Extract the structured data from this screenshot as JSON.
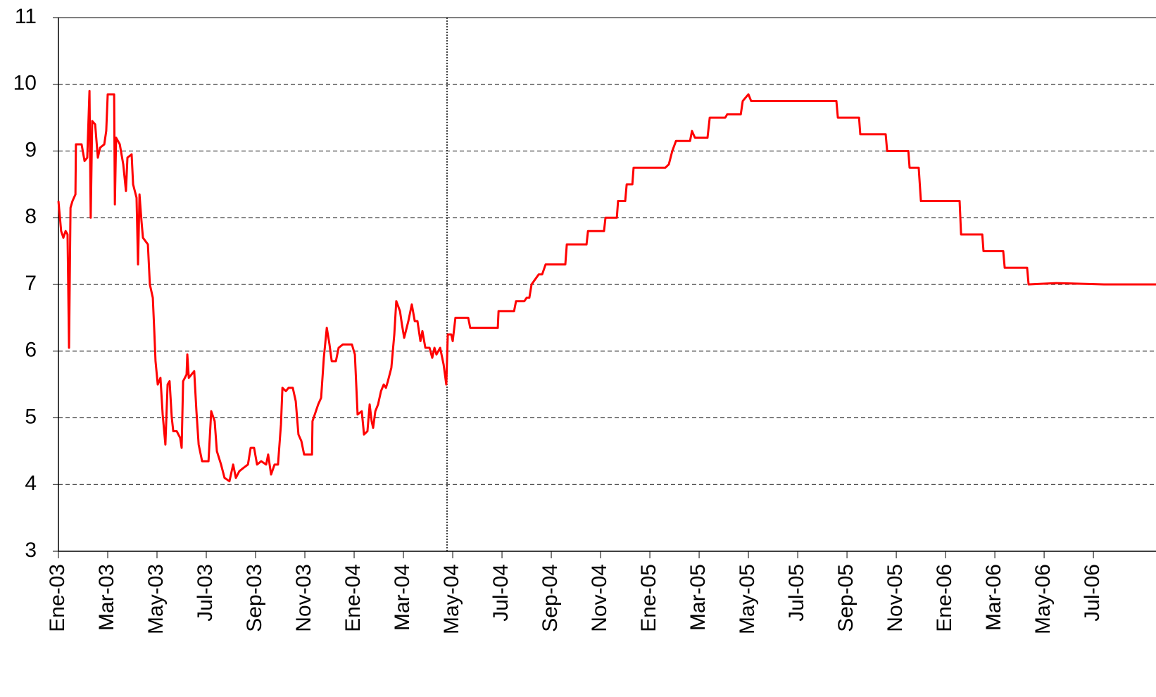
{
  "chart_data": {
    "type": "line",
    "x": [
      0,
      0.11,
      0.2,
      0.29,
      0.37,
      0.43,
      0.49,
      0.57,
      0.69,
      0.71,
      0.94,
      1.06,
      1.17,
      1.26,
      1.31,
      1.37,
      1.49,
      1.6,
      1.69,
      1.86,
      1.94,
      2,
      2.11,
      2.26,
      2.29,
      2.34,
      2.49,
      2.63,
      2.74,
      2.8,
      2.97,
      3.03,
      3.17,
      3.23,
      3.29,
      3.37,
      3.43,
      3.63,
      3.71,
      3.83,
      3.89,
      3.94,
      4.03,
      4.14,
      4.23,
      4.34,
      4.43,
      4.51,
      4.6,
      4.66,
      4.8,
      4.94,
      5,
      5.06,
      5.2,
      5.23,
      5.29,
      5.4,
      5.51,
      5.6,
      5.69,
      5.83,
      6.09,
      6.2,
      6.34,
      6.43,
      6.6,
      6.74,
      6.94,
      7.09,
      7.2,
      7.34,
      7.51,
      7.69,
      7.8,
      7.94,
      8.06,
      8.23,
      8.43,
      8.51,
      8.63,
      8.77,
      8.91,
      9.03,
      9.09,
      9.23,
      9.34,
      9.51,
      9.63,
      9.74,
      9.86,
      9.97,
      10.29,
      10.31,
      10.54,
      10.66,
      10.77,
      10.89,
      11,
      11.09,
      11.26,
      11.37,
      11.54,
      11.91,
      12.03,
      12.14,
      12.31,
      12.4,
      12.54,
      12.63,
      12.71,
      12.77,
      12.86,
      12.97,
      13.09,
      13.2,
      13.29,
      13.37,
      13.51,
      13.63,
      13.71,
      13.86,
      13.94,
      14.03,
      14.2,
      14.34,
      14.46,
      14.57,
      14.69,
      14.77,
      14.89,
      15.06,
      15.17,
      15.26,
      15.34,
      15.49,
      15.63,
      15.74,
      15.8,
      15.94,
      16,
      16.11,
      16.63,
      16.71,
      17.83,
      17.86,
      18.49,
      18.57,
      18.91,
      19,
      19.11,
      19.2,
      19.49,
      19.63,
      19.77,
      20.57,
      20.63,
      21.43,
      21.49,
      22.14,
      22.2,
      22.66,
      22.71,
      23,
      23.06,
      23.29,
      23.34,
      24.63,
      24.77,
      24.91,
      25.06,
      25.63,
      25.71,
      25.83,
      26.34,
      26.43,
      27.06,
      27.14,
      27.69,
      27.77,
      28,
      28.11,
      31.57,
      31.63,
      32.49,
      32.54,
      33.57,
      33.63,
      34.49,
      34.54,
      34.91,
      35,
      36.57,
      36.63,
      37.49,
      37.54,
      38.34,
      38.4,
      39.31,
      39.37,
      40.49,
      42.43,
      44.54
    ],
    "values": [
      8.25,
      7.8,
      7.7,
      7.8,
      7.75,
      6.05,
      8.15,
      8.25,
      8.35,
      9.1,
      9.1,
      8.85,
      8.9,
      9.9,
      8.0,
      9.45,
      9.4,
      8.9,
      9.05,
      9.1,
      9.3,
      9.85,
      9.85,
      9.85,
      8.2,
      9.2,
      9.1,
      8.8,
      8.4,
      8.9,
      8.95,
      8.5,
      8.3,
      7.3,
      8.35,
      7.95,
      7.7,
      7.6,
      7.0,
      6.8,
      6.3,
      5.85,
      5.5,
      5.6,
      5.05,
      4.6,
      5.5,
      5.55,
      5.0,
      4.8,
      4.8,
      4.7,
      4.55,
      5.55,
      5.65,
      5.95,
      5.6,
      5.65,
      5.7,
      5.1,
      4.6,
      4.35,
      4.35,
      5.1,
      4.95,
      4.5,
      4.3,
      4.1,
      4.05,
      4.3,
      4.1,
      4.2,
      4.25,
      4.3,
      4.55,
      4.55,
      4.3,
      4.35,
      4.3,
      4.45,
      4.15,
      4.3,
      4.3,
      4.9,
      5.45,
      5.4,
      5.45,
      5.45,
      5.25,
      4.75,
      4.65,
      4.45,
      4.45,
      4.95,
      5.2,
      5.3,
      5.9,
      6.35,
      6.1,
      5.85,
      5.85,
      6.05,
      6.1,
      6.1,
      5.95,
      5.05,
      5.1,
      4.75,
      4.8,
      5.2,
      4.95,
      4.85,
      5.1,
      5.2,
      5.4,
      5.5,
      5.45,
      5.55,
      5.75,
      6.25,
      6.75,
      6.6,
      6.4,
      6.2,
      6.45,
      6.7,
      6.45,
      6.45,
      6.15,
      6.3,
      6.05,
      6.05,
      5.9,
      6.05,
      5.95,
      6.05,
      5.8,
      5.5,
      6.25,
      6.25,
      6.15,
      6.5,
      6.5,
      6.35,
      6.35,
      6.6,
      6.6,
      6.75,
      6.75,
      6.8,
      6.8,
      7.0,
      7.15,
      7.15,
      7.3,
      7.3,
      7.6,
      7.6,
      7.8,
      7.8,
      8.0,
      8.0,
      8.25,
      8.25,
      8.5,
      8.5,
      8.75,
      8.75,
      8.8,
      9.0,
      9.15,
      9.15,
      9.3,
      9.2,
      9.2,
      9.5,
      9.5,
      9.55,
      9.55,
      9.75,
      9.85,
      9.75,
      9.75,
      9.5,
      9.5,
      9.25,
      9.25,
      9.0,
      9.0,
      8.75,
      8.75,
      8.25,
      8.25,
      7.75,
      7.75,
      7.5,
      7.5,
      7.25,
      7.25,
      7.0,
      7.02,
      7.0,
      7.0
    ],
    "color": "#ff0000",
    "xlim": [
      0,
      44.54
    ],
    "xticks": [
      {
        "value": 0,
        "label": "Ene-03"
      },
      {
        "value": 2,
        "label": "Mar-03"
      },
      {
        "value": 4,
        "label": "May-03"
      },
      {
        "value": 6,
        "label": "Jul-03"
      },
      {
        "value": 8,
        "label": "Sep-03"
      },
      {
        "value": 10,
        "label": "Nov-03"
      },
      {
        "value": 12,
        "label": "Ene-04"
      },
      {
        "value": 14,
        "label": "Mar-04"
      },
      {
        "value": 16,
        "label": "May-04"
      },
      {
        "value": 18,
        "label": "Jul-04"
      },
      {
        "value": 20,
        "label": "Sep-04"
      },
      {
        "value": 22,
        "label": "Nov-04"
      },
      {
        "value": 24,
        "label": "Ene-05"
      },
      {
        "value": 26,
        "label": "Mar-05"
      },
      {
        "value": 28,
        "label": "May-05"
      },
      {
        "value": 30,
        "label": "Jul-05"
      },
      {
        "value": 32,
        "label": "Sep-05"
      },
      {
        "value": 34,
        "label": "Nov-05"
      },
      {
        "value": 36,
        "label": "Ene-06"
      },
      {
        "value": 38,
        "label": "Mar-06"
      },
      {
        "value": 40,
        "label": "May-06"
      },
      {
        "value": 42,
        "label": "Jul-06"
      }
    ],
    "ylim": [
      3,
      11
    ],
    "yticks": [
      3,
      4,
      5,
      6,
      7,
      8,
      9,
      10,
      11
    ],
    "grid": true,
    "vline": 15.77
  }
}
